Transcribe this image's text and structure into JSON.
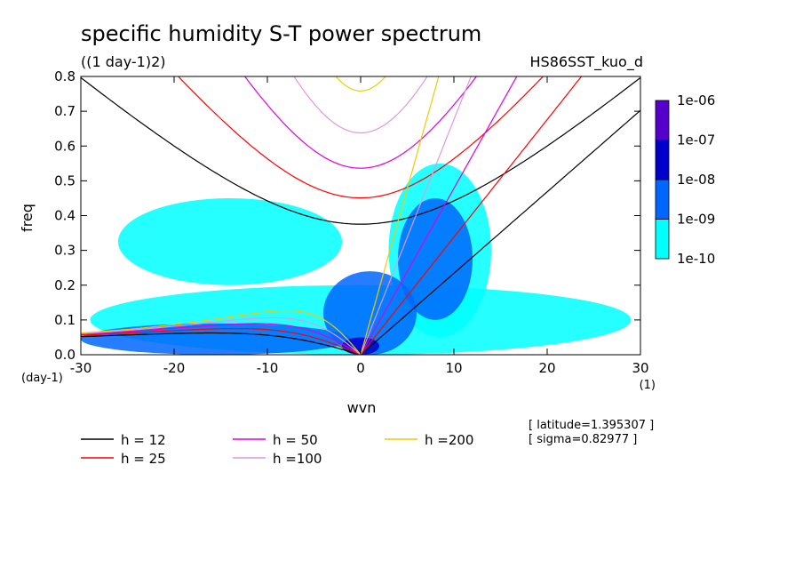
{
  "header": {
    "title": "specific humidity S-T power spectrum",
    "units": "((1 day-1)2)",
    "run_name": "HS86SST_kuo_d"
  },
  "chart_data": {
    "type": "heatmap",
    "title": "specific humidity S-T power spectrum",
    "subtitle": "((1 day-1)2)",
    "xlabel": "wvn",
    "ylabel": "freq",
    "x_unit": "(1)",
    "y_unit": "(day-1)",
    "xlim": [
      -30,
      30
    ],
    "ylim": [
      0,
      0.8
    ],
    "x_ticks": [
      -30,
      -20,
      -10,
      0,
      10,
      20,
      30
    ],
    "y_ticks": [
      0.0,
      0.1,
      0.2,
      0.3,
      0.4,
      0.5,
      0.6,
      0.7,
      0.8
    ],
    "x_tick_labels": [
      "-30",
      "-20",
      "-10",
      "0",
      "10",
      "20",
      "30"
    ],
    "y_tick_labels": [
      "0.0",
      "0.1",
      "0.2",
      "0.3",
      "0.4",
      "0.5",
      "0.6",
      "0.7",
      "0.8"
    ],
    "colorbar": {
      "levels": [
        "1e-10",
        "1e-09",
        "1e-08",
        "1e-07",
        "1e-06"
      ],
      "colors": [
        "#00ffff",
        "#0066ff",
        "#0000cc",
        "#5500cc"
      ]
    },
    "power_regions": [
      {
        "level": 0,
        "x": [
          -29,
          29
        ],
        "y": [
          0.0,
          0.2
        ]
      },
      {
        "level": 0,
        "x": [
          -26,
          -2
        ],
        "y": [
          0.2,
          0.45
        ]
      },
      {
        "level": 0,
        "x": [
          3,
          14
        ],
        "y": [
          0.05,
          0.55
        ]
      },
      {
        "level": 1,
        "x": [
          -30,
          -1
        ],
        "y": [
          0.0,
          0.09
        ]
      },
      {
        "level": 1,
        "x": [
          -4,
          6
        ],
        "y": [
          0.0,
          0.24
        ]
      },
      {
        "level": 1,
        "x": [
          4,
          12
        ],
        "y": [
          0.1,
          0.45
        ]
      },
      {
        "level": 2,
        "x": [
          -2,
          2
        ],
        "y": [
          0.0,
          0.05
        ]
      }
    ],
    "dispersion_curves": [
      {
        "name": "h = 12",
        "color": "#000000"
      },
      {
        "name": "h = 25",
        "color": "#ff0000"
      },
      {
        "name": "h = 50",
        "color": "#dd00dd"
      },
      {
        "name": "h =100",
        "color": "#dd99dd"
      },
      {
        "name": "h =200",
        "color": "#eecc00"
      }
    ],
    "legend_position": "bottom"
  },
  "info": {
    "latitude": "[ latitude=1.395307 ]",
    "sigma": "[ sigma=0.82977 ]"
  }
}
